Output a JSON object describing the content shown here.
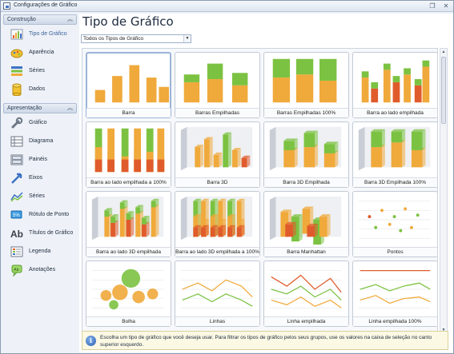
{
  "window": {
    "title": "Configurações de Gráfico"
  },
  "sidebar": {
    "groups": [
      {
        "label": "Construção",
        "chevron": "︽",
        "items": [
          {
            "label": "Tipo de Gráfico",
            "icon": "chart-type-icon"
          },
          {
            "label": "Aparência",
            "icon": "palette-icon"
          },
          {
            "label": "Séries",
            "icon": "series-icon"
          },
          {
            "label": "Dados",
            "icon": "database-icon"
          }
        ]
      },
      {
        "label": "Apresentação",
        "chevron": "︽",
        "items": [
          {
            "label": "Gráfico",
            "icon": "wrench-icon"
          },
          {
            "label": "Diagrama",
            "icon": "diagram-icon"
          },
          {
            "label": "Painéis",
            "icon": "panes-icon"
          },
          {
            "label": "Eixos",
            "icon": "axes-icon"
          },
          {
            "label": "Séries",
            "icon": "series-icon"
          },
          {
            "label": "Rótulo de Ponto",
            "icon": "point-label-icon"
          },
          {
            "label": "Títulos de Gráfico",
            "icon": "chart-titles-icon"
          },
          {
            "label": "Legenda",
            "icon": "legend-icon"
          },
          {
            "label": "Anotações",
            "icon": "annotations-icon"
          }
        ]
      }
    ]
  },
  "main": {
    "title": "Tipo de Gráfico",
    "filter": {
      "value": "Todos os Tipos de Gráfico"
    },
    "tiles": [
      "Barra",
      "Barras Empilhadas",
      "Barras Empilhadas 100%",
      "Barra ao lado empilhada",
      "Barra ao lado empilhada a 100%",
      "Barra 3D",
      "Barra 3D Empilhada",
      "Barra 3D Empilhada 100%",
      "Barra ao lado 3D empilhada",
      "Barra ao lado 3D empilhada a 100%",
      "Barra Manhattan",
      "Pontos",
      "Bolha",
      "Linhas",
      "Linha empilhada",
      "Linha empilhada 100%"
    ],
    "info": "Escolha um tipo de gráfico que você deseja usar. Para filtrar os tipos de gráfico pelos seus grupos, use os valores na caixa de seleção no canto superior esquerdo."
  },
  "colors": {
    "green": "#7cc242",
    "orange": "#f0a93b",
    "red": "#e05b2b",
    "selection": "#9cb4d8"
  }
}
